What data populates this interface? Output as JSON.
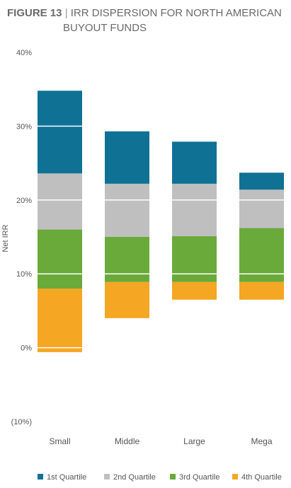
{
  "header": {
    "figure_label": "FIGURE 13",
    "separator": "|",
    "title_line1": "IRR DISPERSION FOR NORTH AMERICAN",
    "title_line2": "BUYOUT FUNDS"
  },
  "chart_data": {
    "type": "bar",
    "stacked": "floating",
    "title": "IRR DISPERSION FOR NORTH AMERICAN BUYOUT FUNDS",
    "ylabel": "Net IRR",
    "xlabel": "",
    "categories": [
      "Small",
      "Middle",
      "Large",
      "Mega"
    ],
    "y_ticks": [
      -10,
      0,
      10,
      20,
      30,
      40
    ],
    "y_tick_labels": [
      "(10%)",
      "0%",
      "10%",
      "20%",
      "30%",
      "40%"
    ],
    "ylim": [
      -10,
      40
    ],
    "grid": "white lines across bars",
    "legend_position": "bottom",
    "series": [
      {
        "name": "4th Quartile",
        "color": "#f5a623",
        "ranges": [
          [
            -0.6,
            8.0
          ],
          [
            4.0,
            8.9
          ],
          [
            6.5,
            8.9
          ],
          [
            6.5,
            8.9
          ]
        ]
      },
      {
        "name": "3rd Quartile",
        "color": "#6aaa3a",
        "ranges": [
          [
            8.0,
            16.0
          ],
          [
            8.9,
            15.0
          ],
          [
            8.9,
            15.1
          ],
          [
            8.9,
            16.2
          ]
        ]
      },
      {
        "name": "2nd Quartile",
        "color": "#bfbfbf",
        "ranges": [
          [
            16.0,
            23.6
          ],
          [
            15.0,
            22.2
          ],
          [
            15.1,
            22.2
          ],
          [
            16.2,
            21.4
          ]
        ]
      },
      {
        "name": "1st Quartile",
        "color": "#0f7194",
        "ranges": [
          [
            23.6,
            34.8
          ],
          [
            22.2,
            29.3
          ],
          [
            22.2,
            27.9
          ],
          [
            21.4,
            23.7
          ]
        ]
      }
    ],
    "legend_order": [
      "1st Quartile",
      "2nd Quartile",
      "3rd Quartile",
      "4th Quartile"
    ]
  }
}
